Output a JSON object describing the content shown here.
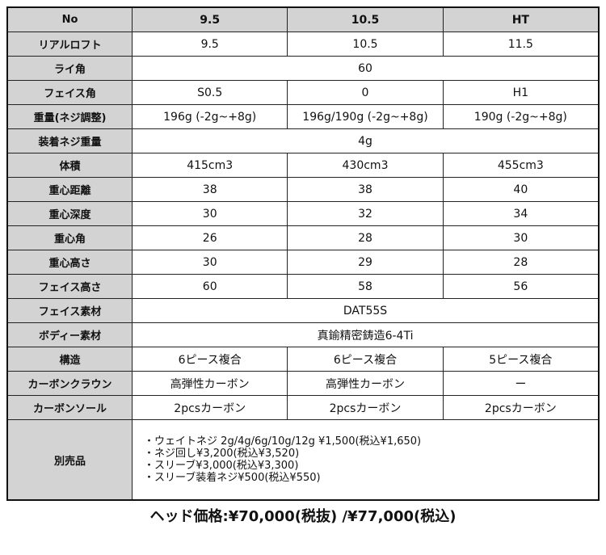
{
  "header": [
    "No",
    "9.5",
    "10.5",
    "HT"
  ],
  "rows": [
    {
      "label": "リアルロフト",
      "cells": [
        "9.5",
        "10.5",
        "11.5"
      ]
    },
    {
      "label": "ライ角",
      "span": "60"
    },
    {
      "label": "フェイス角",
      "cells": [
        "S0.5",
        "0",
        "H1"
      ]
    },
    {
      "label": "重量(ネジ調整)",
      "cells": [
        "196g (-2g~+8g)",
        "196g/190g (-2g~+8g)",
        "190g (-2g~+8g)"
      ]
    },
    {
      "label": "装着ネジ重量",
      "span": "4g"
    },
    {
      "label": "体積",
      "cells": [
        "415cm3",
        "430cm3",
        "455cm3"
      ]
    },
    {
      "label": "重心距離",
      "cells": [
        "38",
        "38",
        "40"
      ]
    },
    {
      "label": "重心深度",
      "cells": [
        "30",
        "32",
        "34"
      ]
    },
    {
      "label": "重心角",
      "cells": [
        "26",
        "28",
        "30"
      ]
    },
    {
      "label": "重心高さ",
      "cells": [
        "30",
        "29",
        "28"
      ]
    },
    {
      "label": "フェイス高さ",
      "cells": [
        "60",
        "58",
        "56"
      ]
    },
    {
      "label": "フェイス素材",
      "span": "DAT55S"
    },
    {
      "label": "ボディー素材",
      "span": "真鍮精密鋳造6-4Ti"
    },
    {
      "label": "構造",
      "cells": [
        "6ピース複合",
        "6ピース複合",
        "5ピース複合"
      ]
    },
    {
      "label": "カーボンクラウン",
      "cells": [
        "高弾性カーボン",
        "高弾性カーボン",
        "ー"
      ]
    },
    {
      "label": "カーボンソール",
      "cells": [
        "2pcsカーボン",
        "2pcsカーボン",
        "2pcsカーボン"
      ]
    }
  ],
  "accessories": {
    "label": "別売品",
    "items": [
      "・ウェイトネジ 2g/4g/6g/10g/12g ¥1,500(税込¥1,650)",
      "・ネジ回し¥3,200(税込¥3,520)",
      "・スリーブ¥3,000(税込¥3,300)",
      "・スリーブ装着ネジ¥500(税込¥550)"
    ]
  },
  "price": "ヘッド価格:¥70,000(税抜) /¥77,000(税込)"
}
